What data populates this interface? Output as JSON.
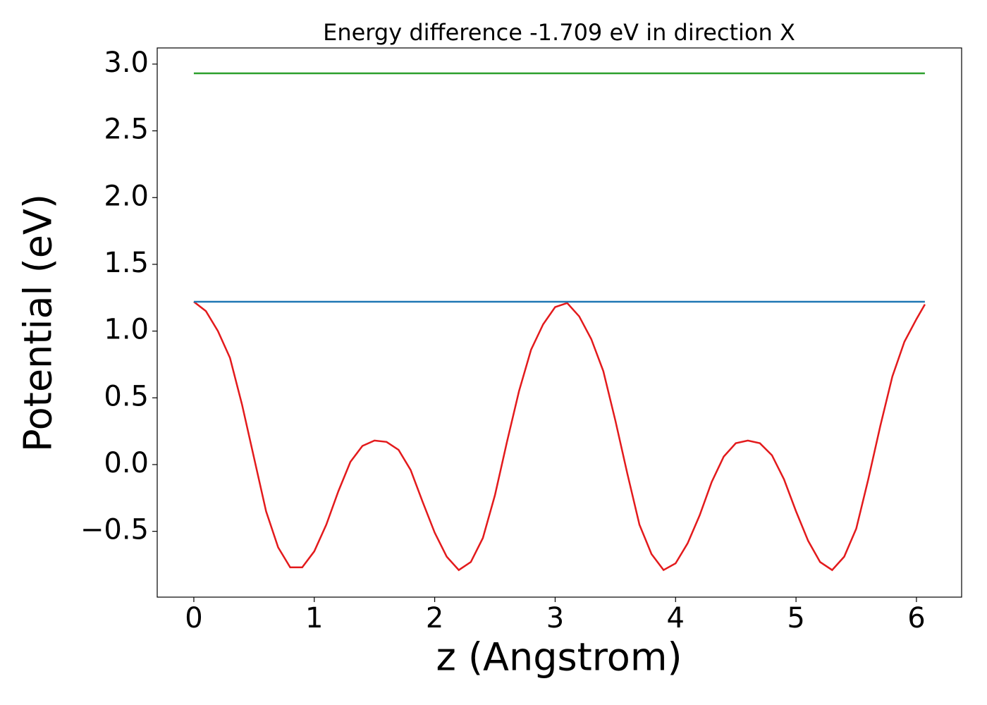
{
  "chart_data": {
    "type": "line",
    "title": "Energy difference -1.709 eV in direction X",
    "x_label": "z (Angstrom)",
    "y_label": "Potential (eV)",
    "xlim": [
      -0.304,
      6.375
    ],
    "ylim": [
      -0.993,
      3.121
    ],
    "xticks": [
      0,
      1,
      2,
      3,
      4,
      5,
      6
    ],
    "yticks": [
      {
        "value": -0.5,
        "label": "−0.5"
      },
      {
        "value": 0,
        "label": "0.0"
      },
      0.5,
      {
        "value": 1,
        "label": "1.0"
      },
      1.5,
      {
        "value": 2,
        "label": "2.0"
      },
      2.5,
      {
        "value": 3,
        "label": "3.0"
      }
    ],
    "series": [
      {
        "color": "#e31a1c",
        "x": [
          0,
          0.1,
          0.2,
          0.3,
          0.4,
          0.5,
          0.6,
          0.7,
          0.8,
          0.9,
          1.0,
          1.1,
          1.2,
          1.3,
          1.4,
          1.5,
          1.6,
          1.7,
          1.8,
          1.9,
          2.0,
          2.1,
          2.2,
          2.3,
          2.4,
          2.5,
          2.6,
          2.7,
          2.8,
          2.9,
          3.0,
          3.1,
          3.2,
          3.3,
          3.4,
          3.5,
          3.6,
          3.7,
          3.8,
          3.9,
          4.0,
          4.1,
          4.2,
          4.3,
          4.4,
          4.5,
          4.6,
          4.7,
          4.8,
          4.9,
          5.0,
          5.1,
          5.2,
          5.3,
          5.4,
          5.5,
          5.6,
          5.7,
          5.8,
          5.9,
          6.0,
          6.07
        ],
        "values": [
          1.22,
          1.15,
          1.0,
          0.8,
          0.45,
          0.05,
          -0.35,
          -0.62,
          -0.77,
          -0.77,
          -0.65,
          -0.45,
          -0.2,
          0.02,
          0.14,
          0.18,
          0.17,
          0.11,
          -0.04,
          -0.28,
          -0.51,
          -0.69,
          -0.79,
          -0.73,
          -0.55,
          -0.23,
          0.17,
          0.55,
          0.86,
          1.05,
          1.18,
          1.21,
          1.11,
          0.94,
          0.7,
          0.33,
          -0.07,
          -0.45,
          -0.67,
          -0.79,
          -0.74,
          -0.59,
          -0.38,
          -0.13,
          0.06,
          0.16,
          0.18,
          0.16,
          0.07,
          -0.11,
          -0.35,
          -0.57,
          -0.73,
          -0.79,
          -0.69,
          -0.48,
          -0.11,
          0.29,
          0.66,
          0.92,
          1.09,
          1.2
        ]
      },
      {
        "color": "#1f77b4",
        "x": [
          0,
          6.07
        ],
        "values": [
          1.22,
          1.22
        ]
      },
      {
        "color": "#2ca02c",
        "x": [
          0,
          6.07
        ],
        "values": [
          2.931,
          2.931
        ]
      }
    ]
  }
}
